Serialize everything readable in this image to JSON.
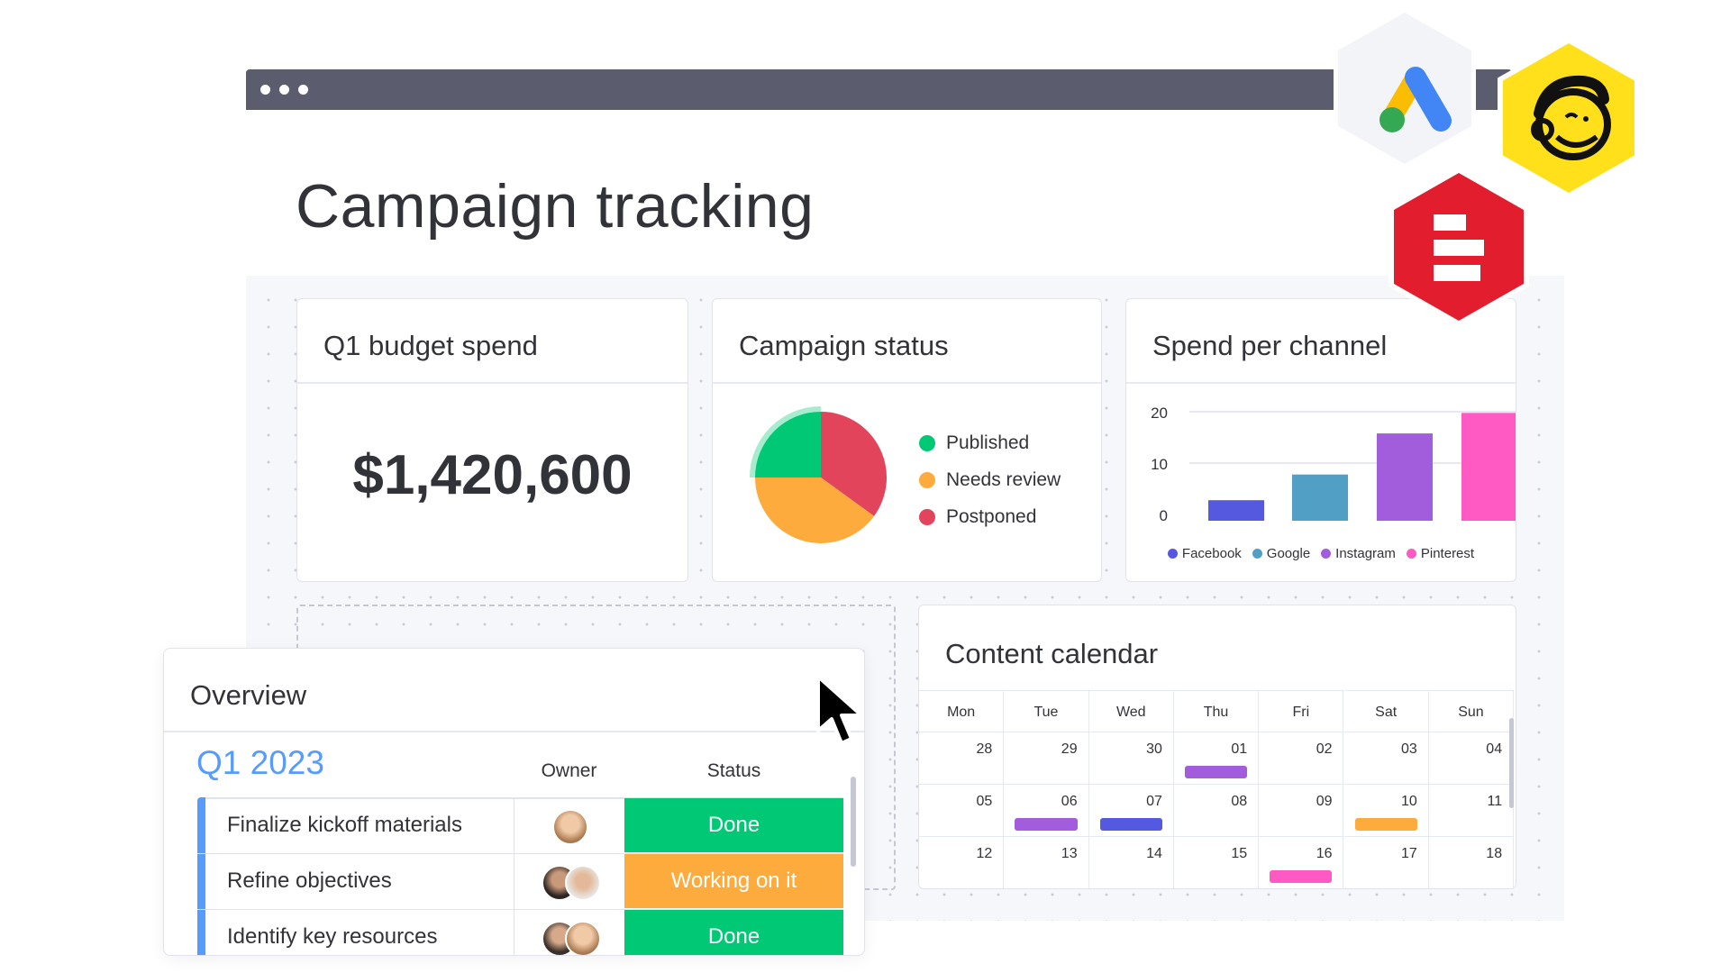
{
  "page": {
    "title": "Campaign tracking"
  },
  "window": {
    "controls": [
      "dot",
      "dot",
      "dot"
    ]
  },
  "integrations": [
    {
      "name": "Google Ads",
      "icon": "google-ads-logo",
      "bg": "#f3f4f7"
    },
    {
      "name": "Mailchimp",
      "icon": "mailchimp-logo",
      "bg": "#ffe01b"
    },
    {
      "name": "Dashboard widget app",
      "icon": "red-bars-logo",
      "bg": "#e11d2e"
    }
  ],
  "budget_card": {
    "title": "Q1 budget spend",
    "value": "$1,420,600"
  },
  "status_card": {
    "title": "Campaign status",
    "legend": [
      {
        "label": "Published",
        "color": "#00c875"
      },
      {
        "label": "Needs review",
        "color": "#fdab3d"
      },
      {
        "label": "Postponed",
        "color": "#e2445c"
      }
    ]
  },
  "channel_card": {
    "title": "Spend per channel"
  },
  "chart_data": [
    {
      "type": "pie",
      "title": "Campaign status",
      "categories": [
        "Postponed",
        "Needs review",
        "Published"
      ],
      "values": [
        35,
        40,
        25
      ],
      "colors": [
        "#e2445c",
        "#fdab3d",
        "#00c875"
      ],
      "start_angle_deg": 0,
      "direction": "clockwise",
      "legend_placement": "right"
    },
    {
      "type": "bar",
      "title": "Spend per channel",
      "categories": [
        "Facebook",
        "Google",
        "Instagram",
        "Pinterest"
      ],
      "values": [
        4,
        9,
        17,
        21
      ],
      "colors": [
        "#5559df",
        "#529fc6",
        "#a25ddc",
        "#ff5ac4"
      ],
      "yticks": [
        "0",
        "10",
        "20"
      ],
      "ylim": [
        0,
        22
      ],
      "grid": true,
      "legend_placement": "bottom"
    }
  ],
  "calendar": {
    "title": "Content calendar",
    "days": [
      "Mon",
      "Tue",
      "Wed",
      "Thu",
      "Fri",
      "Sat",
      "Sun"
    ],
    "weeks": [
      [
        {
          "d": "28"
        },
        {
          "d": "29"
        },
        {
          "d": "30"
        },
        {
          "d": "01",
          "event": "#a25ddc"
        },
        {
          "d": "02"
        },
        {
          "d": "03"
        },
        {
          "d": "04"
        }
      ],
      [
        {
          "d": "05"
        },
        {
          "d": "06",
          "event": "#a25ddc"
        },
        {
          "d": "07",
          "event": "#5559df"
        },
        {
          "d": "08"
        },
        {
          "d": "09"
        },
        {
          "d": "10",
          "event": "#fdab3d"
        },
        {
          "d": "11"
        }
      ],
      [
        {
          "d": "12"
        },
        {
          "d": "13"
        },
        {
          "d": "14"
        },
        {
          "d": "15"
        },
        {
          "d": "16",
          "event": "#ff5ac4"
        },
        {
          "d": "17"
        },
        {
          "d": "18"
        }
      ]
    ]
  },
  "overview": {
    "title": "Overview",
    "group": "Q1 2023",
    "group_color": "#579bfc",
    "columns": {
      "owner": "Owner",
      "status": "Status"
    },
    "rows": [
      {
        "name": "Finalize kickoff materials",
        "owners": 1,
        "status": "Done",
        "status_color": "#00c875"
      },
      {
        "name": "Refine objectives",
        "owners": 2,
        "status": "Working on it",
        "status_color": "#fdab3d"
      },
      {
        "name": "Identify key resources",
        "owners": 2,
        "status": "Done",
        "status_color": "#00c875"
      }
    ]
  }
}
